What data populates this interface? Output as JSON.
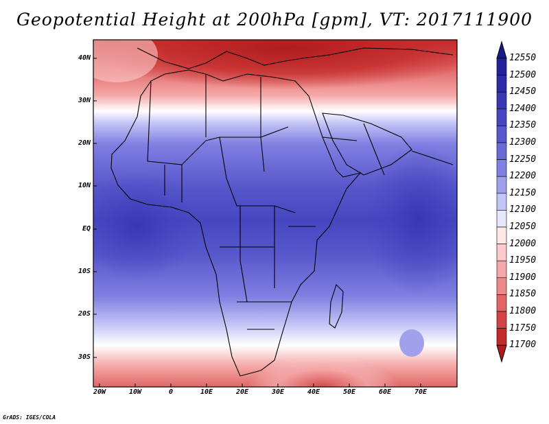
{
  "title": "Geopotential Height at 200hPa [gpm], VT: 2017111900",
  "credit": "GrADS: IGES/COLA",
  "lat_labels": [
    "40N",
    "30N",
    "20N",
    "10N",
    "EQ",
    "10S",
    "20S",
    "30S"
  ],
  "lon_labels": [
    "20W",
    "10W",
    "0",
    "10E",
    "20E",
    "30E",
    "40E",
    "50E",
    "60E",
    "70E"
  ],
  "colorbar": {
    "labels": [
      "12550",
      "12500",
      "12450",
      "12400",
      "12350",
      "12300",
      "12250",
      "12200",
      "12150",
      "12100",
      "12050",
      "12000",
      "11950",
      "11900",
      "11850",
      "11800",
      "11750",
      "11700"
    ],
    "colors": [
      "#22229a",
      "#2c2ca8",
      "#3838b4",
      "#4646c0",
      "#5858cc",
      "#6a6ad6",
      "#8080e2",
      "#a0a0ec",
      "#c4c4f6",
      "#e6e6fc",
      "#ffe8e8",
      "#fccaca",
      "#f5a8a8",
      "#ec8a8a",
      "#e06666",
      "#d44444",
      "#c42a2a",
      "#b01c1c"
    ]
  }
}
